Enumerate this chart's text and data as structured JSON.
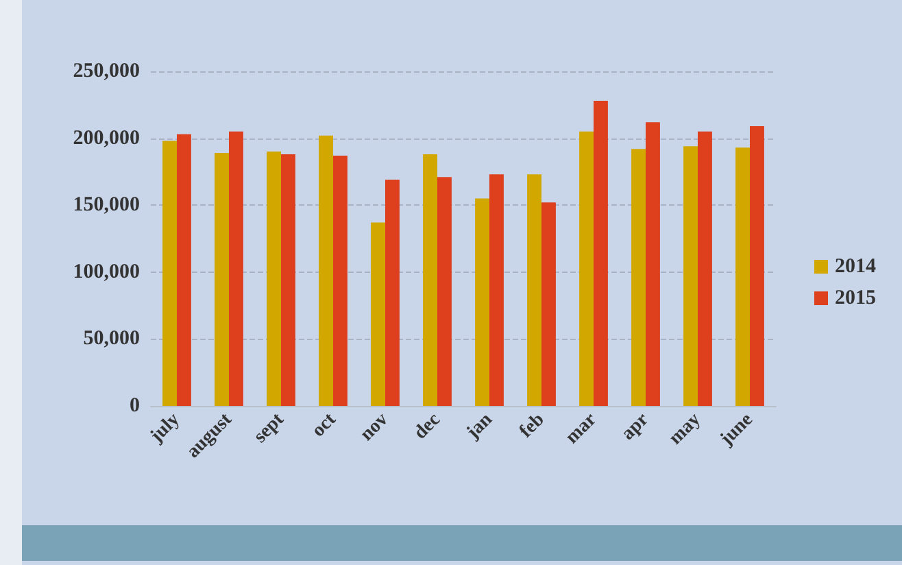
{
  "chart_data": {
    "type": "bar",
    "categories": [
      "july",
      "august",
      "sept",
      "oct",
      "nov",
      "dec",
      "jan",
      "feb",
      "mar",
      "apr",
      "may",
      "june"
    ],
    "series": [
      {
        "name": "2014",
        "color": "#d2a700",
        "values": [
          198000,
          189000,
          190000,
          202000,
          137000,
          188000,
          155000,
          173000,
          205000,
          192000,
          194000,
          193000
        ]
      },
      {
        "name": "2015",
        "color": "#de3f1c",
        "values": [
          203000,
          205000,
          188000,
          187000,
          169000,
          171000,
          173000,
          152000,
          228000,
          212000,
          205000,
          209000
        ]
      }
    ],
    "ylim": [
      0,
      250000
    ],
    "yticks": [
      0,
      {
        "value": 50000,
        "label": "50,000"
      },
      {
        "value": 100000,
        "label": "100,000"
      },
      {
        "value": 150000,
        "label": "150,000"
      },
      {
        "value": 200000,
        "label": "200,000"
      },
      {
        "value": 250000,
        "label": "250,000"
      }
    ],
    "grid": "y",
    "legend": "right"
  }
}
